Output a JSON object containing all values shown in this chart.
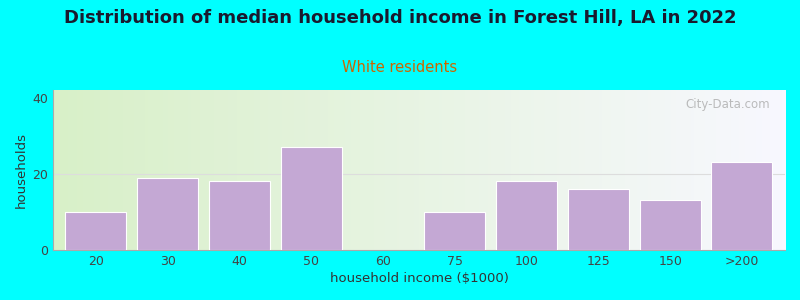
{
  "title": "Distribution of median household income in Forest Hill, LA in 2022",
  "subtitle": "White residents",
  "xlabel": "household income ($1000)",
  "ylabel": "households",
  "background_color": "#00FFFF",
  "bar_color": "#c4a8d4",
  "bar_edge_color": "#ffffff",
  "categories": [
    "20",
    "30",
    "40",
    "50",
    "60",
    "75",
    "100",
    "125",
    "150",
    ">200"
  ],
  "values": [
    10,
    19,
    18,
    27,
    0,
    10,
    18,
    16,
    13,
    23
  ],
  "yticks": [
    0,
    20,
    40
  ],
  "ylim": [
    0,
    42
  ],
  "title_fontsize": 13,
  "subtitle_fontsize": 10.5,
  "subtitle_color": "#cc6600",
  "axis_label_fontsize": 9.5,
  "tick_fontsize": 9,
  "watermark_text": "City-Data.com",
  "bar_width": 0.85,
  "gradient_left_color": "#d8f0c8",
  "gradient_right_color": "#f8f8ff"
}
